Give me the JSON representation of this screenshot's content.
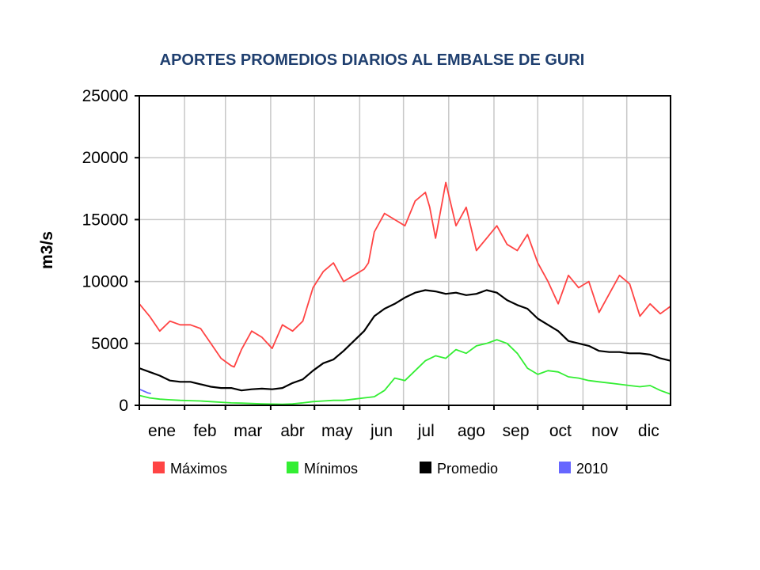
{
  "chart_data": {
    "type": "line",
    "title": "APORTES PROMEDIOS DIARIOS AL EMBALSE DE GURI",
    "xlabel": "",
    "ylabel": "m3/s",
    "categories": [
      "ene",
      "feb",
      "mar",
      "abr",
      "may",
      "jun",
      "jul",
      "ago",
      "sep",
      "oct",
      "nov",
      "dic"
    ],
    "x_range": [
      1,
      365
    ],
    "ylim": [
      0,
      25000
    ],
    "yticks": [
      0,
      5000,
      10000,
      15000,
      20000,
      25000
    ],
    "grid": true,
    "legend_position": "bottom",
    "series": [
      {
        "name": "Máximos",
        "color": "#ff4444",
        "x": [
          1,
          8,
          15,
          22,
          29,
          36,
          43,
          50,
          57,
          64,
          66,
          71,
          78,
          85,
          92,
          99,
          106,
          113,
          120,
          127,
          134,
          141,
          148,
          155,
          158,
          162,
          169,
          176,
          183,
          190,
          197,
          200,
          204,
          211,
          218,
          225,
          232,
          239,
          246,
          253,
          260,
          267,
          274,
          281,
          288,
          295,
          302,
          309,
          316,
          323,
          330,
          337,
          344,
          351,
          358,
          365
        ],
        "values": [
          8200,
          7200,
          6000,
          6800,
          6500,
          6500,
          6200,
          5000,
          3800,
          3200,
          3100,
          4500,
          6000,
          5500,
          4600,
          6500,
          6000,
          6800,
          9500,
          10800,
          11500,
          10000,
          10500,
          11000,
          11500,
          14000,
          15500,
          15000,
          14500,
          16500,
          17200,
          16000,
          13500,
          18000,
          14500,
          16000,
          12500,
          13500,
          14500,
          13000,
          12500,
          13800,
          11500,
          10000,
          8200,
          10500,
          9500,
          10000,
          7500,
          9000,
          10500,
          9800,
          7200,
          8200,
          7400,
          8000
        ]
      },
      {
        "name": "Mínimos",
        "color": "#33ee33",
        "x": [
          1,
          8,
          15,
          22,
          29,
          36,
          43,
          50,
          57,
          64,
          71,
          78,
          85,
          92,
          99,
          106,
          113,
          120,
          127,
          134,
          141,
          148,
          155,
          162,
          169,
          176,
          183,
          190,
          197,
          204,
          211,
          218,
          225,
          232,
          239,
          246,
          253,
          260,
          267,
          274,
          281,
          288,
          295,
          302,
          309,
          316,
          323,
          330,
          337,
          344,
          351,
          358,
          365
        ],
        "values": [
          800,
          600,
          500,
          450,
          400,
          380,
          350,
          300,
          250,
          200,
          180,
          150,
          120,
          100,
          80,
          120,
          200,
          300,
          350,
          400,
          400,
          500,
          600,
          700,
          1200,
          2200,
          2000,
          2800,
          3600,
          4000,
          3800,
          4500,
          4200,
          4800,
          5000,
          5300,
          5000,
          4200,
          3000,
          2500,
          2800,
          2700,
          2300,
          2200,
          2000,
          1900,
          1800,
          1700,
          1600,
          1500,
          1600,
          1200,
          900
        ]
      },
      {
        "name": "Promedio",
        "color": "#000000",
        "x": [
          1,
          8,
          15,
          22,
          29,
          36,
          43,
          50,
          57,
          64,
          71,
          78,
          85,
          92,
          99,
          106,
          113,
          120,
          127,
          134,
          141,
          148,
          155,
          162,
          169,
          176,
          183,
          190,
          197,
          204,
          211,
          218,
          225,
          232,
          239,
          246,
          253,
          260,
          267,
          274,
          281,
          288,
          295,
          302,
          309,
          316,
          323,
          330,
          337,
          344,
          351,
          358,
          365
        ],
        "values": [
          3000,
          2700,
          2400,
          2000,
          1900,
          1900,
          1700,
          1500,
          1400,
          1400,
          1200,
          1300,
          1350,
          1300,
          1400,
          1800,
          2100,
          2800,
          3400,
          3700,
          4400,
          5200,
          6000,
          7200,
          7800,
          8200,
          8700,
          9100,
          9300,
          9200,
          9000,
          9100,
          8900,
          9000,
          9300,
          9100,
          8500,
          8100,
          7800,
          7000,
          6500,
          6000,
          5200,
          5000,
          4800,
          4400,
          4300,
          4300,
          4200,
          4200,
          4100,
          3800,
          3600
        ]
      },
      {
        "name": "2010",
        "color": "#6666ff",
        "x": [
          1,
          3,
          5,
          7,
          9
        ],
        "values": [
          1300,
          1200,
          1100,
          1000,
          950
        ]
      }
    ]
  }
}
